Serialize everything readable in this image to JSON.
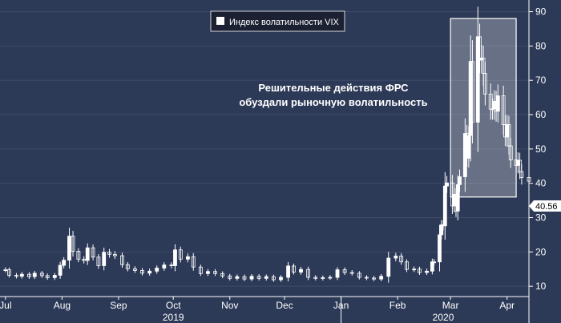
{
  "chart_data": {
    "type": "candlestick",
    "title": "",
    "legend": {
      "label": "Индекс волатильности VIX",
      "placement": "top-center",
      "marker_color": "#ffffff"
    },
    "annotation": {
      "lines": [
        "Решительные действия ФРС",
        "обуздали рыночную волатильность"
      ]
    },
    "last_value_label": "40.56",
    "ylim": [
      7,
      92
    ],
    "yticks": [
      10,
      20,
      30,
      40,
      50,
      60,
      70,
      80,
      90
    ],
    "xlim": [
      "2019-06-28",
      "2020-04-13"
    ],
    "month_ticks": [
      {
        "label": "Jul",
        "date": "2019-07-01"
      },
      {
        "label": "Aug",
        "date": "2019-08-01"
      },
      {
        "label": "Sep",
        "date": "2019-09-01"
      },
      {
        "label": "Oct",
        "date": "2019-10-01"
      },
      {
        "label": "Nov",
        "date": "2019-11-01"
      },
      {
        "label": "Dec",
        "date": "2019-12-01"
      },
      {
        "label": "Jan",
        "date": "2020-01-01"
      },
      {
        "label": "Feb",
        "date": "2020-02-01"
      },
      {
        "label": "Mar",
        "date": "2020-03-01"
      },
      {
        "label": "Apr",
        "date": "2020-04-01"
      }
    ],
    "year_labels": [
      {
        "label": "2019",
        "date": "2019-10-01"
      },
      {
        "label": "2020",
        "date": "2020-02-26"
      }
    ],
    "year_divider_date": "2020-01-01",
    "highlight_range": {
      "x": [
        "2020-03-01",
        "2020-04-06"
      ],
      "y": [
        36,
        88
      ]
    },
    "colors": {
      "background": "#2d3a57",
      "candle": "#ffffff",
      "grid": "#3e4b68",
      "axis_text": "#ffffff"
    },
    "series": [
      {
        "points": [
          [
            "2019-07-01",
            14.8
          ],
          [
            "2019-07-03",
            13.2
          ],
          [
            "2019-07-07",
            12.9
          ],
          [
            "2019-07-10",
            13.5
          ],
          [
            "2019-07-14",
            12.8
          ],
          [
            "2019-07-17",
            13.8
          ],
          [
            "2019-07-21",
            13.1
          ],
          [
            "2019-07-24",
            12.5
          ],
          [
            "2019-07-28",
            13.2
          ],
          [
            "2019-07-31",
            16.1
          ],
          [
            "2019-08-02",
            17.6
          ],
          [
            "2019-08-05",
            24.6
          ],
          [
            "2019-08-07",
            20.2
          ],
          [
            "2019-08-10",
            17.9
          ],
          [
            "2019-08-13",
            17.5
          ],
          [
            "2019-08-15",
            21.2
          ],
          [
            "2019-08-18",
            18.5
          ],
          [
            "2019-08-21",
            16.0
          ],
          [
            "2019-08-24",
            19.9
          ],
          [
            "2019-08-27",
            19.3
          ],
          [
            "2019-08-30",
            18.9
          ],
          [
            "2019-09-03",
            16.3
          ],
          [
            "2019-09-06",
            15.1
          ],
          [
            "2019-09-10",
            14.6
          ],
          [
            "2019-09-14",
            13.8
          ],
          [
            "2019-09-18",
            14.4
          ],
          [
            "2019-09-22",
            15.3
          ],
          [
            "2019-09-26",
            16.2
          ],
          [
            "2019-09-30",
            16.0
          ],
          [
            "2019-10-02",
            20.6
          ],
          [
            "2019-10-05",
            17.9
          ],
          [
            "2019-10-09",
            18.6
          ],
          [
            "2019-10-12",
            15.6
          ],
          [
            "2019-10-16",
            13.7
          ],
          [
            "2019-10-20",
            14.3
          ],
          [
            "2019-10-24",
            13.7
          ],
          [
            "2019-10-28",
            13.0
          ],
          [
            "2019-11-01",
            12.3
          ],
          [
            "2019-11-05",
            12.8
          ],
          [
            "2019-11-09",
            12.1
          ],
          [
            "2019-11-13",
            12.9
          ],
          [
            "2019-11-17",
            12.3
          ],
          [
            "2019-11-21",
            12.8
          ],
          [
            "2019-11-25",
            11.9
          ],
          [
            "2019-11-29",
            12.6
          ],
          [
            "2019-12-03",
            15.9
          ],
          [
            "2019-12-06",
            14.1
          ],
          [
            "2019-12-10",
            14.9
          ],
          [
            "2019-12-14",
            12.6
          ],
          [
            "2019-12-18",
            12.3
          ],
          [
            "2019-12-22",
            12.5
          ],
          [
            "2019-12-26",
            12.6
          ],
          [
            "2019-12-30",
            14.8
          ],
          [
            "2020-01-03",
            14.0
          ],
          [
            "2020-01-07",
            13.8
          ],
          [
            "2020-01-11",
            12.6
          ],
          [
            "2020-01-15",
            12.4
          ],
          [
            "2020-01-19",
            12.1
          ],
          [
            "2020-01-23",
            12.9
          ],
          [
            "2020-01-27",
            18.2
          ],
          [
            "2020-01-31",
            18.8
          ],
          [
            "2020-02-03",
            17.1
          ],
          [
            "2020-02-06",
            14.9
          ],
          [
            "2020-02-10",
            15.0
          ],
          [
            "2020-02-13",
            14.0
          ],
          [
            "2020-02-17",
            14.4
          ],
          [
            "2020-02-20",
            17.1
          ],
          [
            "2020-02-21",
            17.1
          ],
          [
            "2020-02-24",
            25.0
          ],
          [
            "2020-02-25",
            27.9
          ],
          [
            "2020-02-26",
            27.6
          ],
          [
            "2020-02-27",
            39.2
          ],
          [
            "2020-02-28",
            40.1
          ],
          [
            "2020-03-02",
            33.4
          ],
          [
            "2020-03-03",
            36.8
          ],
          [
            "2020-03-04",
            31.9
          ],
          [
            "2020-03-05",
            39.6
          ],
          [
            "2020-03-06",
            41.9
          ],
          [
            "2020-03-09",
            54.5
          ],
          [
            "2020-03-10",
            47.3
          ],
          [
            "2020-03-11",
            53.9
          ],
          [
            "2020-03-12",
            75.5
          ],
          [
            "2020-03-13",
            57.8
          ],
          [
            "2020-03-16",
            82.7
          ],
          [
            "2020-03-17",
            75.9
          ],
          [
            "2020-03-18",
            76.5
          ],
          [
            "2020-03-19",
            72.0
          ],
          [
            "2020-03-20",
            66.0
          ],
          [
            "2020-03-23",
            61.6
          ],
          [
            "2020-03-24",
            61.7
          ],
          [
            "2020-03-25",
            63.9
          ],
          [
            "2020-03-26",
            61.0
          ],
          [
            "2020-03-27",
            65.5
          ],
          [
            "2020-03-30",
            57.1
          ],
          [
            "2020-03-31",
            53.5
          ],
          [
            "2020-04-01",
            57.1
          ],
          [
            "2020-04-02",
            50.9
          ],
          [
            "2020-04-03",
            46.8
          ],
          [
            "2020-04-06",
            45.2
          ],
          [
            "2020-04-07",
            46.7
          ],
          [
            "2020-04-08",
            43.4
          ],
          [
            "2020-04-09",
            41.7
          ],
          [
            "2020-04-13",
            40.6
          ]
        ]
      }
    ]
  }
}
